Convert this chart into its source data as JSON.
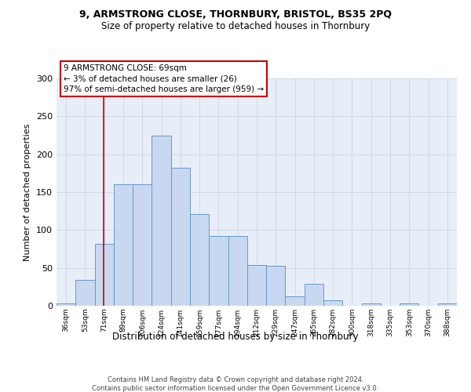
{
  "title1": "9, ARMSTRONG CLOSE, THORNBURY, BRISTOL, BS35 2PQ",
  "title2": "Size of property relative to detached houses in Thornbury",
  "xlabel": "Distribution of detached houses by size in Thornbury",
  "ylabel": "Number of detached properties",
  "bar_values": [
    3,
    34,
    82,
    160,
    160,
    224,
    182,
    121,
    92,
    92,
    54,
    53,
    12,
    29,
    7,
    0,
    3,
    0,
    3,
    0,
    3
  ],
  "bar_labels": [
    "36sqm",
    "53sqm",
    "71sqm",
    "89sqm",
    "106sqm",
    "124sqm",
    "141sqm",
    "159sqm",
    "177sqm",
    "194sqm",
    "212sqm",
    "229sqm",
    "247sqm",
    "265sqm",
    "282sqm",
    "300sqm",
    "318sqm",
    "335sqm",
    "353sqm",
    "370sqm",
    "388sqm"
  ],
  "bar_color": "#c8d8f0",
  "bar_edge_color": "#6699cc",
  "annotation_box_text": "9 ARMSTRONG CLOSE: 69sqm\n← 3% of detached houses are smaller (26)\n97% of semi-detached houses are larger (959) →",
  "annotation_box_color": "#ffffff",
  "annotation_box_edge_color": "#cc0000",
  "vline_color": "#cc0000",
  "vline_x": 1.95,
  "ylim": [
    0,
    300
  ],
  "yticks": [
    0,
    50,
    100,
    150,
    200,
    250,
    300
  ],
  "grid_color": "#d0d8e8",
  "background_color": "#e8eef8",
  "footer1": "Contains HM Land Registry data © Crown copyright and database right 2024.",
  "footer2": "Contains public sector information licensed under the Open Government Licence v3.0."
}
